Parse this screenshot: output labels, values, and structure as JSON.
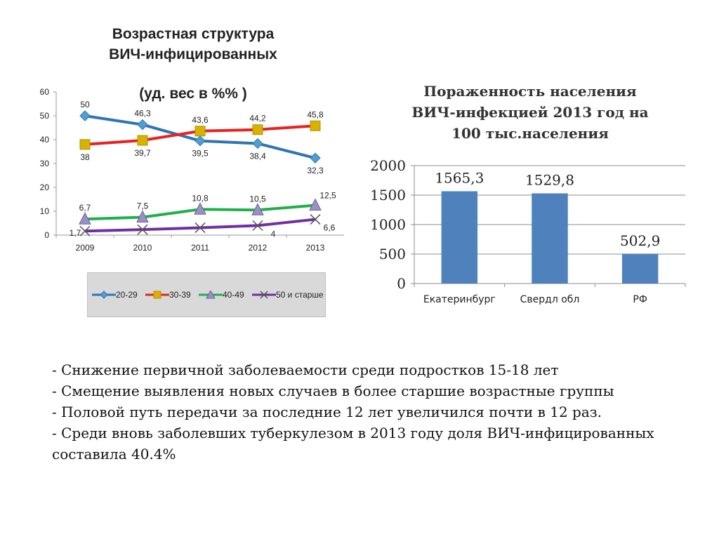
{
  "left_chart": {
    "title_line1": "Возрастная структура",
    "title_line2": "ВИЧ-инфицированных",
    "subtitle": "(уд. вес в %% )"
  },
  "right_chart": {
    "title_line1": "Пораженность населения",
    "title_line2": "ВИЧ-инфекцией 2013 год на",
    "title_line3": "100 тыс.населения"
  },
  "chart_data": [
    {
      "type": "line",
      "x": [
        "2009",
        "2010",
        "2011",
        "2012",
        "2013"
      ],
      "ylim": [
        0,
        60
      ],
      "yticks": [
        0,
        10,
        20,
        30,
        40,
        50,
        60
      ],
      "grid": false,
      "legend": "bottom",
      "series": [
        {
          "name": "20-29",
          "values": [
            50,
            46.3,
            39.5,
            38.4,
            32.3
          ],
          "labels": [
            "50",
            "46,3",
            "39,5",
            "38,4",
            "32,3"
          ],
          "color": "#2e75b6",
          "marker": "diamond"
        },
        {
          "name": "30-39",
          "values": [
            38,
            39.7,
            43.6,
            44.2,
            45.8
          ],
          "labels": [
            "38",
            "39,7",
            "43,6",
            "44,2",
            "45,8"
          ],
          "color": "#e8231f",
          "marker": "square"
        },
        {
          "name": "40-49",
          "values": [
            6.7,
            7.5,
            10.8,
            10.5,
            12.5
          ],
          "labels": [
            "6,7",
            "7,5",
            "10,8",
            "10,5",
            "12,5"
          ],
          "color": "#1fb04b",
          "marker": "triangle"
        },
        {
          "name": "50 и старше",
          "values": [
            1.7,
            2.3,
            3.1,
            4,
            6.6
          ],
          "labels": [
            "1,7",
            "",
            "",
            "4",
            "6,6"
          ],
          "color": "#7030a0",
          "marker": "x"
        }
      ]
    },
    {
      "type": "bar",
      "categories": [
        "Екатеринбург",
        "Свердл обл",
        "РФ"
      ],
      "values": [
        1565.3,
        1529.8,
        502.9
      ],
      "labels": [
        "1565,3",
        "1529,8",
        "502,9"
      ],
      "ylim": [
        0,
        2000
      ],
      "yticks": [
        0,
        500,
        1000,
        1500,
        2000
      ],
      "grid": true,
      "color": "#4f81bd"
    }
  ],
  "bullets": [
    "- Снижение первичной заболеваемости среди подростков 15-18 лет",
    "- Смещение выявления новых случаев в более старшие возрастные группы",
    "- Половой путь передачи за последние 12 лет увеличился почти в 12 раз.",
    "- Среди вновь заболевших туберкулезом в 2013 году доля ВИЧ-инфицированных составила 40.4%"
  ]
}
